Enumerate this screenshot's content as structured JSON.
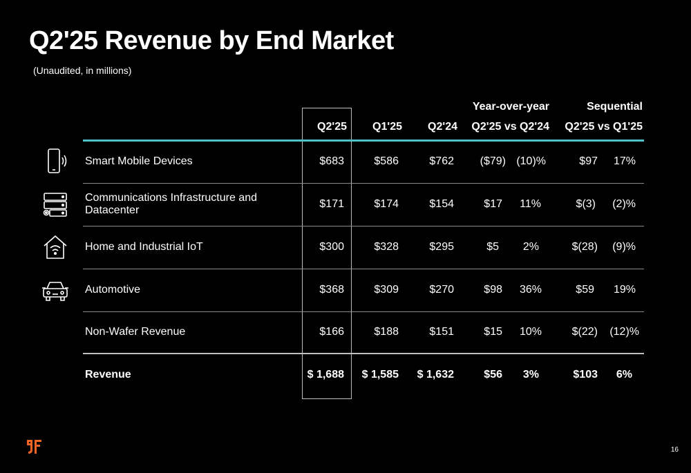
{
  "title": "Q2'25 Revenue by End Market",
  "subtitle": "(Unaudited, in millions)",
  "group_headers": {
    "yoy": "Year-over-year",
    "seq": "Sequential"
  },
  "columns": {
    "q2_25": "Q2'25",
    "q1_25": "Q1'25",
    "q2_24": "Q2'24",
    "yoy": "Q2'25 vs Q2'24",
    "seq": "Q2'25 vs Q1'25"
  },
  "rows": [
    {
      "label": "Smart Mobile Devices",
      "icon": "smartphone-icon",
      "q2_25": "$683",
      "q1_25": "$586",
      "q2_24": "$762",
      "yoy_abs": "($79)",
      "yoy_pct": "(10)%",
      "seq_abs": "$97",
      "seq_pct": "17%"
    },
    {
      "label_line1": "Communications Infrastructure and",
      "label_line2": "Datacenter",
      "icon": "server-gear-icon",
      "q2_25": "$171",
      "q1_25": "$174",
      "q2_24": "$154",
      "yoy_abs": "$17",
      "yoy_pct": "11%",
      "seq_abs": "$(3)",
      "seq_pct": "(2)%"
    },
    {
      "label": "Home and Industrial IoT",
      "icon": "home-wifi-icon",
      "q2_25": "$300",
      "q1_25": "$328",
      "q2_24": "$295",
      "yoy_abs": "$5",
      "yoy_pct": "2%",
      "seq_abs": "$(28)",
      "seq_pct": "(9)%"
    },
    {
      "label": "Automotive",
      "icon": "car-icon",
      "q2_25": "$368",
      "q1_25": "$309",
      "q2_24": "$270",
      "yoy_abs": "$98",
      "yoy_pct": "36%",
      "seq_abs": "$59",
      "seq_pct": "19%"
    },
    {
      "label": "Non-Wafer Revenue",
      "q2_25": "$166",
      "q1_25": "$188",
      "q2_24": "$151",
      "yoy_abs": "$15",
      "yoy_pct": "10%",
      "seq_abs": "$(22)",
      "seq_pct": "(12)%"
    },
    {
      "label": "Revenue",
      "q2_25": "$ 1,688",
      "q1_25": "$ 1,585",
      "q2_24": "$ 1,632",
      "yoy_abs": "$56",
      "yoy_pct": "3%",
      "seq_abs": "$103",
      "seq_pct": "6%"
    }
  ],
  "colors": {
    "accent_line": "#4fc3c7",
    "logo": "#f26522"
  },
  "logo_icon": "company-logo-icon",
  "page_number": "16"
}
